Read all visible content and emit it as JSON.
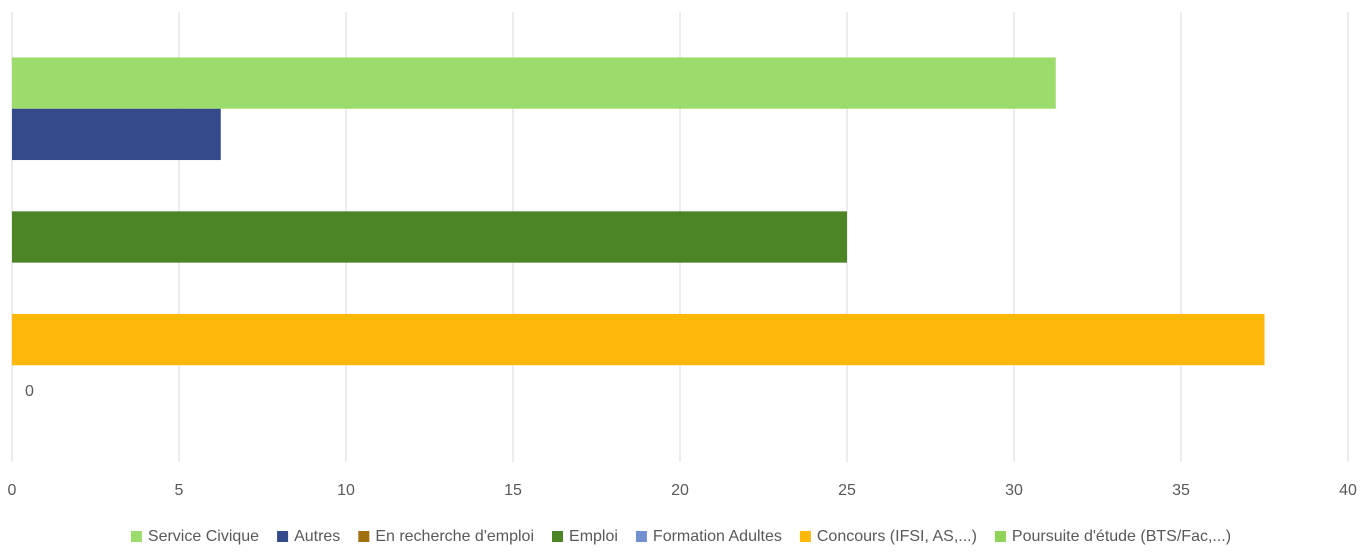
{
  "chart_data": {
    "type": "barh",
    "categories": [
      null
    ],
    "series": [
      {
        "name": "Service Civique",
        "color": "#9bdc6c",
        "values": [
          31.25
        ]
      },
      {
        "name": "Autres",
        "color": "#344a8a",
        "values": [
          6.25
        ]
      },
      {
        "name": "En recherche d'emploi",
        "color": "#a0700f",
        "values": [
          0
        ]
      },
      {
        "name": "Emploi",
        "color": "#4c8426",
        "values": [
          25
        ]
      },
      {
        "name": "Formation Adultes",
        "color": "#7391d1",
        "values": [
          0
        ]
      },
      {
        "name": "Concours (IFSI, AS,...)",
        "color": "#ffb70a",
        "values": [
          37.5
        ]
      },
      {
        "name": "Poursuite d'étude (BTS/Fac,...)",
        "color": "#8fd45a",
        "values": [
          0
        ],
        "value_labels": [
          "0"
        ]
      }
    ],
    "xlim": [
      0,
      40
    ],
    "xticks": [
      0,
      5,
      10,
      15,
      20,
      25,
      30,
      35,
      40
    ],
    "grid": true,
    "legend": "bottom"
  }
}
